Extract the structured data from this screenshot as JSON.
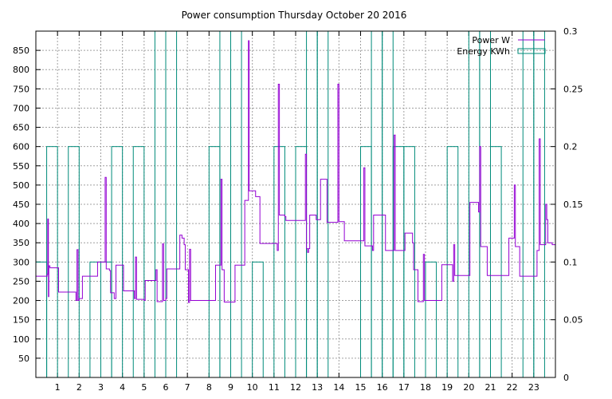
{
  "chart_data": {
    "type": "line",
    "title": "Power consumption Thursday October 20 2016",
    "xlabel": "",
    "ylabel": "",
    "y2label": "",
    "grid": true,
    "legend_position": "top-right",
    "xlim": [
      0,
      24
    ],
    "ylim": [
      0,
      900
    ],
    "y2lim": [
      0,
      0.3
    ],
    "x_ticks": [
      1,
      2,
      3,
      4,
      5,
      6,
      7,
      8,
      9,
      10,
      11,
      12,
      13,
      14,
      15,
      16,
      17,
      18,
      19,
      20,
      21,
      22,
      23
    ],
    "y_ticks": [
      50,
      100,
      150,
      200,
      250,
      300,
      350,
      400,
      450,
      500,
      550,
      600,
      650,
      700,
      750,
      800,
      850
    ],
    "y2_ticks": [
      0,
      0.05,
      0.1,
      0.15,
      0.2,
      0.25,
      0.3
    ],
    "series": [
      {
        "name": "Power W",
        "color": "#9400d3",
        "axis": "y",
        "style": "steps",
        "points": [
          [
            0,
            263
          ],
          [
            0.5,
            263
          ],
          [
            0.52,
            268
          ],
          [
            0.55,
            412
          ],
          [
            0.58,
            210
          ],
          [
            0.6,
            290
          ],
          [
            0.65,
            285
          ],
          [
            1.0,
            285
          ],
          [
            1.05,
            222
          ],
          [
            1.8,
            222
          ],
          [
            1.85,
            200
          ],
          [
            1.9,
            332
          ],
          [
            1.95,
            200
          ],
          [
            2.0,
            205
          ],
          [
            2.15,
            263
          ],
          [
            2.8,
            263
          ],
          [
            2.85,
            300
          ],
          [
            3.1,
            300
          ],
          [
            3.2,
            520
          ],
          [
            3.25,
            282
          ],
          [
            3.4,
            278
          ],
          [
            3.45,
            220
          ],
          [
            3.6,
            220
          ],
          [
            3.62,
            205
          ],
          [
            3.7,
            292
          ],
          [
            4.0,
            292
          ],
          [
            4.05,
            225
          ],
          [
            4.5,
            225
          ],
          [
            4.55,
            205
          ],
          [
            4.6,
            313
          ],
          [
            4.65,
            203
          ],
          [
            5.0,
            200
          ],
          [
            5.05,
            252
          ],
          [
            5.5,
            252
          ],
          [
            5.55,
            280
          ],
          [
            5.6,
            197
          ],
          [
            5.8,
            197
          ],
          [
            5.85,
            347
          ],
          [
            5.9,
            200
          ],
          [
            6.0,
            205
          ],
          [
            6.05,
            282
          ],
          [
            6.6,
            282
          ],
          [
            6.65,
            370
          ],
          [
            6.75,
            362
          ],
          [
            6.85,
            345
          ],
          [
            6.9,
            280
          ],
          [
            7.0,
            280
          ],
          [
            7.05,
            195
          ],
          [
            7.1,
            333
          ],
          [
            7.15,
            200
          ],
          [
            8.2,
            200
          ],
          [
            8.3,
            292
          ],
          [
            8.5,
            292
          ],
          [
            8.55,
            515
          ],
          [
            8.6,
            280
          ],
          [
            8.7,
            196
          ],
          [
            9.1,
            196
          ],
          [
            9.2,
            292
          ],
          [
            9.6,
            292
          ],
          [
            9.65,
            460
          ],
          [
            9.8,
            460
          ],
          [
            9.82,
            875
          ],
          [
            9.85,
            485
          ],
          [
            10.1,
            485
          ],
          [
            10.15,
            470
          ],
          [
            10.3,
            470
          ],
          [
            10.35,
            348
          ],
          [
            11.1,
            348
          ],
          [
            11.15,
            330
          ],
          [
            11.2,
            762
          ],
          [
            11.25,
            422
          ],
          [
            11.5,
            418
          ],
          [
            11.55,
            408
          ],
          [
            12.4,
            408
          ],
          [
            12.45,
            580
          ],
          [
            12.5,
            335
          ],
          [
            12.55,
            325
          ],
          [
            12.6,
            335
          ],
          [
            12.65,
            422
          ],
          [
            12.9,
            422
          ],
          [
            12.95,
            410
          ],
          [
            13.1,
            410
          ],
          [
            13.15,
            515
          ],
          [
            13.4,
            515
          ],
          [
            13.45,
            403
          ],
          [
            13.9,
            403
          ],
          [
            13.95,
            762
          ],
          [
            14.0,
            405
          ],
          [
            14.2,
            405
          ],
          [
            14.25,
            355
          ],
          [
            15.1,
            355
          ],
          [
            15.15,
            545
          ],
          [
            15.2,
            342
          ],
          [
            15.5,
            342
          ],
          [
            15.55,
            330
          ],
          [
            15.6,
            422
          ],
          [
            16.1,
            422
          ],
          [
            16.15,
            330
          ],
          [
            16.5,
            330
          ],
          [
            16.55,
            630
          ],
          [
            16.6,
            330
          ],
          [
            17.0,
            330
          ],
          [
            17.05,
            375
          ],
          [
            17.35,
            375
          ],
          [
            17.4,
            350
          ],
          [
            17.45,
            280
          ],
          [
            17.6,
            280
          ],
          [
            17.65,
            197
          ],
          [
            17.85,
            197
          ],
          [
            17.9,
            320
          ],
          [
            17.95,
            200
          ],
          [
            18.7,
            200
          ],
          [
            18.75,
            293
          ],
          [
            19.2,
            293
          ],
          [
            19.25,
            250
          ],
          [
            19.3,
            345
          ],
          [
            19.35,
            265
          ],
          [
            20.0,
            265
          ],
          [
            20.05,
            455
          ],
          [
            20.4,
            455
          ],
          [
            20.45,
            430
          ],
          [
            20.5,
            600
          ],
          [
            20.55,
            340
          ],
          [
            20.8,
            340
          ],
          [
            20.85,
            265
          ],
          [
            21.8,
            265
          ],
          [
            21.85,
            362
          ],
          [
            22.05,
            362
          ],
          [
            22.1,
            500
          ],
          [
            22.15,
            340
          ],
          [
            22.3,
            340
          ],
          [
            22.35,
            263
          ],
          [
            23.1,
            263
          ],
          [
            23.15,
            330
          ],
          [
            23.25,
            620
          ],
          [
            23.3,
            345
          ],
          [
            23.5,
            345
          ],
          [
            23.55,
            450
          ],
          [
            23.6,
            410
          ],
          [
            23.65,
            350
          ],
          [
            23.8,
            350
          ],
          [
            23.85,
            345
          ],
          [
            24,
            345
          ]
        ]
      },
      {
        "name": "Energy KWh",
        "color": "#008b7a",
        "axis": "y2",
        "style": "boxes",
        "box_width": 0.5,
        "boxes": [
          [
            0.25,
            0.1
          ],
          [
            0.75,
            0.2
          ],
          [
            1.75,
            0.2
          ],
          [
            2.75,
            0.1
          ],
          [
            3.25,
            0.1
          ],
          [
            3.75,
            0.2
          ],
          [
            4.75,
            0.2
          ],
          [
            5.75,
            0.3
          ],
          [
            6.25,
            0.3
          ],
          [
            8.25,
            0.2
          ],
          [
            8.75,
            0.3
          ],
          [
            9.25,
            0.3
          ],
          [
            10.25,
            0.1
          ],
          [
            11.25,
            0.2
          ],
          [
            12.25,
            0.2
          ],
          [
            12.75,
            0.3
          ],
          [
            13.25,
            0.3
          ],
          [
            15.25,
            0.2
          ],
          [
            15.75,
            0.3
          ],
          [
            16.25,
            0.3
          ],
          [
            16.75,
            0.2
          ],
          [
            17.25,
            0.2
          ],
          [
            18.25,
            0.1
          ],
          [
            19.25,
            0.2
          ],
          [
            20.25,
            0.3
          ],
          [
            20.75,
            0.3
          ],
          [
            21.25,
            0.2
          ],
          [
            22.75,
            0.3
          ],
          [
            23.25,
            0.3
          ]
        ]
      }
    ]
  }
}
